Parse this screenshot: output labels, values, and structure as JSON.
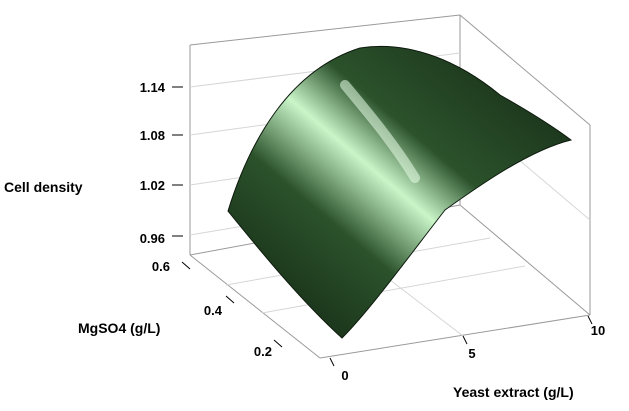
{
  "chart_data": {
    "type": "surface",
    "title": "",
    "axes": {
      "x": {
        "label": "Yeast extract (g/L)",
        "range": [
          0,
          10
        ],
        "ticks": [
          "0",
          "5",
          "10"
        ]
      },
      "y": {
        "label": "MgSO4 (g/L)",
        "range": [
          0.1,
          0.6
        ],
        "ticks": [
          "0.2",
          "0.4",
          "0.6"
        ]
      },
      "z": {
        "label": "Cell density",
        "range": [
          0.93,
          1.17
        ],
        "ticks": [
          "0.96",
          "1.02",
          "1.08",
          "1.14"
        ]
      }
    },
    "grid": true,
    "surface_color": "#2e5a2e",
    "corner_values": [
      {
        "yeast_extract": 0,
        "mgso4": 0.1,
        "cell_density": 0.95
      },
      {
        "yeast_extract": 0,
        "mgso4": 0.6,
        "cell_density": 1.0
      },
      {
        "yeast_extract": 10,
        "mgso4": 0.6,
        "cell_density": 1.09
      },
      {
        "yeast_extract": 10,
        "mgso4": 0.1,
        "cell_density": 1.02
      }
    ],
    "peak": {
      "yeast_extract": 5,
      "mgso4": 0.6,
      "cell_density": 1.16
    }
  }
}
